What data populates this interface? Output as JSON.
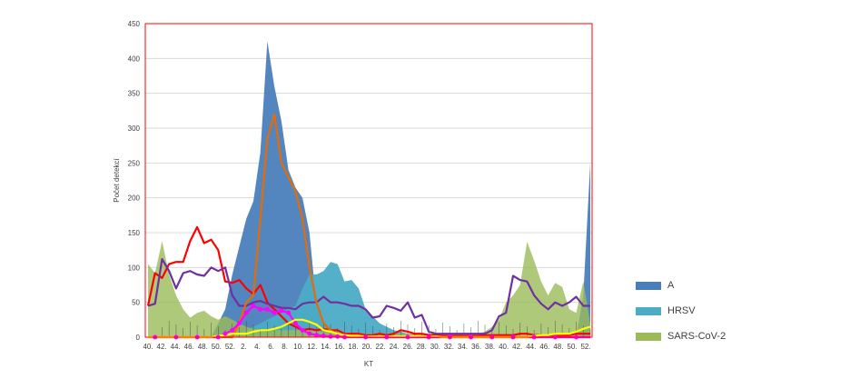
{
  "chart_data": {
    "type": "area",
    "xlabel": "KT",
    "ylabel": "Počet detekcí",
    "ylim": [
      0,
      450
    ],
    "yticks": [
      0,
      50,
      100,
      150,
      200,
      250,
      300,
      350,
      400,
      450
    ],
    "xtick_labels": [
      "40.",
      "42.",
      "44.",
      "46.",
      "48.",
      "50.",
      "52.",
      "2.",
      "4.",
      "6.",
      "8.",
      "10.",
      "12.",
      "14.",
      "16.",
      "18.",
      "20.",
      "22.",
      "24.",
      "26.",
      "28.",
      "30.",
      "32.",
      "34.",
      "36.",
      "38.",
      "40.",
      "42.",
      "44.",
      "46.",
      "48.",
      "50.",
      "52."
    ],
    "grid": true,
    "legend_position": "right",
    "x": [
      "40.",
      "41.",
      "42.",
      "43.",
      "44.",
      "45.",
      "46.",
      "47.",
      "48.",
      "49.",
      "50.",
      "51.",
      "52.",
      "1.",
      "2.",
      "3.",
      "4.",
      "5.",
      "6.",
      "7.",
      "8.",
      "9.",
      "10.",
      "11.",
      "12.",
      "13.",
      "14.",
      "15.",
      "16.",
      "17.",
      "18.",
      "19.",
      "20.",
      "21.",
      "22.",
      "23.",
      "24.",
      "25.",
      "26.",
      "27.",
      "28.",
      "29.",
      "30.",
      "31.",
      "32.",
      "33.",
      "34.",
      "35.",
      "36.",
      "37.",
      "38.",
      "39.",
      "40.",
      "41.",
      "42.",
      "43.",
      "44.",
      "45.",
      "46.",
      "47.",
      "48.",
      "49.",
      "50.",
      "51."
    ],
    "series": [
      {
        "name": "A",
        "kind": "area",
        "color": "#4a7ebb",
        "values": [
          0,
          0,
          0,
          0,
          0,
          0,
          0,
          0,
          0,
          0,
          20,
          40,
          90,
          130,
          170,
          195,
          265,
          425,
          360,
          310,
          240,
          215,
          200,
          150,
          45,
          20,
          10,
          8,
          5,
          3,
          2,
          1,
          1,
          0,
          0,
          0,
          0,
          0,
          0,
          0,
          0,
          0,
          0,
          0,
          0,
          0,
          0,
          0,
          0,
          0,
          0,
          0,
          0,
          0,
          0,
          0,
          0,
          0,
          0,
          0,
          0,
          0,
          60,
          250
        ]
      },
      {
        "name": "HRSV",
        "kind": "area",
        "color": "#4bacc6",
        "values": [
          0,
          0,
          0,
          0,
          0,
          0,
          0,
          0,
          0,
          0,
          0,
          0,
          2,
          5,
          10,
          15,
          20,
          25,
          30,
          35,
          40,
          45,
          70,
          90,
          90,
          95,
          108,
          105,
          80,
          82,
          70,
          40,
          30,
          20,
          15,
          10,
          8,
          5,
          3,
          2,
          1,
          1,
          0,
          0,
          0,
          0,
          0,
          0,
          0,
          0,
          0,
          0,
          0,
          0,
          0,
          0,
          0,
          0,
          0,
          0,
          0,
          0,
          0,
          0
        ]
      },
      {
        "name": "SARS-CoV-2",
        "kind": "area",
        "color": "#9bbb59",
        "values": [
          105,
          92,
          138,
          90,
          60,
          40,
          28,
          35,
          38,
          30,
          25,
          30,
          25,
          20,
          15,
          12,
          10,
          10,
          10,
          10,
          10,
          10,
          10,
          10,
          8,
          8,
          8,
          8,
          5,
          5,
          5,
          5,
          5,
          5,
          5,
          5,
          5,
          5,
          5,
          5,
          5,
          5,
          5,
          5,
          5,
          5,
          5,
          5,
          8,
          15,
          25,
          50,
          60,
          75,
          137,
          110,
          80,
          60,
          78,
          72,
          40,
          35,
          80,
          20
        ]
      },
      {
        "name": "",
        "kind": "line",
        "color": "#ff0000",
        "values": [
          45,
          92,
          85,
          105,
          108,
          108,
          138,
          158,
          135,
          140,
          125,
          80,
          78,
          82,
          70,
          62,
          75,
          50,
          40,
          30,
          20,
          15,
          10,
          12,
          10,
          12,
          10,
          10,
          5,
          5,
          5,
          3,
          3,
          5,
          3,
          5,
          10,
          8,
          5,
          5,
          3,
          3,
          2,
          2,
          2,
          2,
          2,
          2,
          3,
          3,
          3,
          3,
          3,
          5,
          5,
          3,
          3,
          2,
          2,
          2,
          3,
          5,
          5,
          5
        ]
      },
      {
        "name": "",
        "kind": "line",
        "color": "#7030a0",
        "values": [
          45,
          48,
          112,
          95,
          70,
          92,
          95,
          90,
          88,
          100,
          95,
          100,
          60,
          45,
          45,
          50,
          52,
          48,
          45,
          42,
          42,
          40,
          48,
          50,
          50,
          58,
          50,
          50,
          48,
          45,
          45,
          40,
          28,
          30,
          45,
          42,
          38,
          50,
          28,
          32,
          8,
          5,
          5,
          5,
          5,
          5,
          5,
          5,
          5,
          10,
          30,
          35,
          88,
          82,
          80,
          60,
          48,
          40,
          50,
          45,
          50,
          58,
          45,
          45
        ]
      },
      {
        "name": "",
        "kind": "line",
        "color": "#e36c09",
        "values": [
          0,
          0,
          0,
          0,
          0,
          0,
          0,
          0,
          0,
          0,
          0,
          0,
          0,
          20,
          50,
          60,
          170,
          285,
          320,
          250,
          230,
          210,
          170,
          100,
          50,
          20,
          10,
          5,
          3,
          2,
          1,
          0,
          0,
          0,
          0,
          0,
          0,
          0,
          0,
          0,
          0,
          0,
          0,
          0,
          0,
          0,
          0,
          0,
          0,
          0,
          0,
          0,
          0,
          0,
          0,
          0,
          0,
          0,
          0,
          0,
          0,
          0,
          0,
          0
        ]
      },
      {
        "name": "",
        "kind": "line",
        "color": "#ff00ff",
        "marker": true,
        "values": [
          0,
          0,
          0,
          0,
          0,
          0,
          0,
          0,
          0,
          0,
          0,
          5,
          10,
          20,
          35,
          45,
          40,
          40,
          35,
          38,
          35,
          20,
          10,
          5,
          3,
          2,
          1,
          1,
          0,
          0,
          0,
          0,
          0,
          0,
          0,
          0,
          0,
          0,
          0,
          0,
          0,
          0,
          0,
          0,
          0,
          0,
          0,
          0,
          0,
          0,
          0,
          0,
          0,
          0,
          0,
          0,
          0,
          0,
          0,
          0,
          0,
          0,
          0,
          0
        ]
      },
      {
        "name": "",
        "kind": "line",
        "color": "#ffff00",
        "values": [
          0,
          0,
          0,
          0,
          0,
          0,
          0,
          0,
          0,
          0,
          2,
          3,
          5,
          5,
          5,
          8,
          10,
          10,
          12,
          15,
          20,
          25,
          25,
          22,
          18,
          10,
          8,
          5,
          3,
          2,
          2,
          1,
          1,
          1,
          1,
          1,
          1,
          1,
          1,
          1,
          1,
          1,
          0,
          0,
          0,
          0,
          0,
          0,
          0,
          0,
          0,
          0,
          0,
          0,
          0,
          2,
          3,
          3,
          5,
          5,
          5,
          8,
          12,
          15
        ]
      }
    ]
  }
}
